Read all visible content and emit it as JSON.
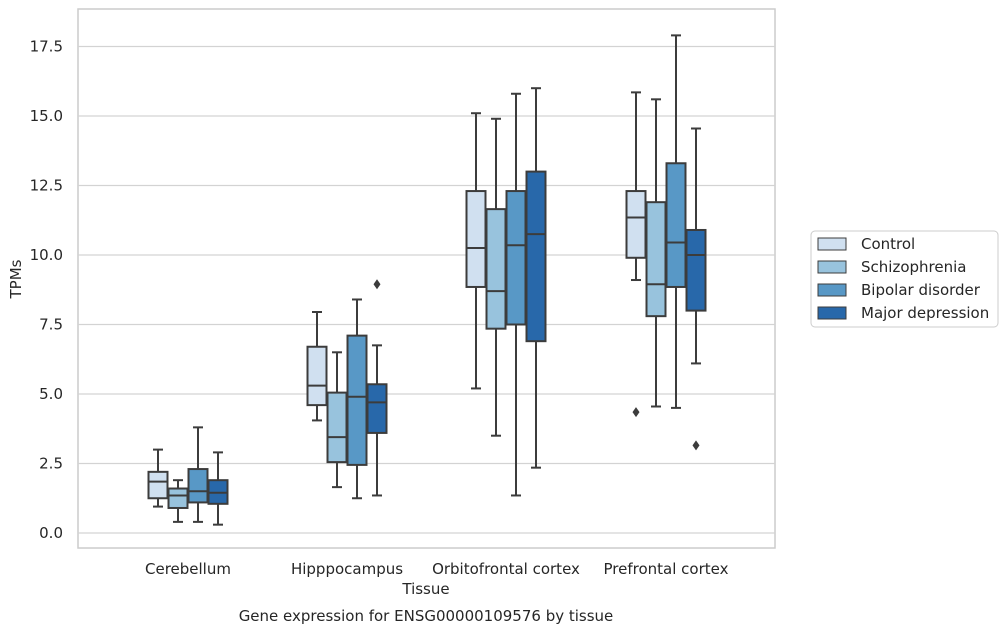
{
  "chart_data": {
    "type": "box",
    "xlabel": "Tissue",
    "ylabel": "TPMs",
    "caption": "Gene expression for ENSG00000109576 by tissue",
    "ylim": [
      -0.5,
      18.8
    ],
    "yticks": [
      "0.0",
      "2.5",
      "5.0",
      "7.5",
      "10.0",
      "12.5",
      "15.0",
      "17.5"
    ],
    "grid": "horizontal",
    "legend_position": "right",
    "categories": [
      "Cerebellum",
      "Hipppocampus",
      "Orbitofrontal cortex",
      "Prefrontal cortex"
    ],
    "series": [
      {
        "name": "Control",
        "color": "#d0e0f0",
        "boxes": [
          {
            "whislo": 0.95,
            "q1": 1.25,
            "med": 1.85,
            "q3": 2.2,
            "whishi": 3.0,
            "fliers": []
          },
          {
            "whislo": 4.05,
            "q1": 4.6,
            "med": 5.3,
            "q3": 6.7,
            "whishi": 7.95,
            "fliers": []
          },
          {
            "whislo": 5.2,
            "q1": 8.85,
            "med": 10.25,
            "q3": 12.3,
            "whishi": 15.1,
            "fliers": []
          },
          {
            "whislo": 9.1,
            "q1": 9.9,
            "med": 11.35,
            "q3": 12.3,
            "whishi": 15.85,
            "fliers": [
              4.35
            ]
          }
        ]
      },
      {
        "name": "Schizophrenia",
        "color": "#98c3dd",
        "boxes": [
          {
            "whislo": 0.4,
            "q1": 0.9,
            "med": 1.35,
            "q3": 1.6,
            "whishi": 1.9,
            "fliers": []
          },
          {
            "whislo": 1.65,
            "q1": 2.55,
            "med": 3.45,
            "q3": 5.05,
            "whishi": 6.5,
            "fliers": []
          },
          {
            "whislo": 3.5,
            "q1": 7.35,
            "med": 8.7,
            "q3": 11.65,
            "whishi": 14.9,
            "fliers": []
          },
          {
            "whislo": 4.55,
            "q1": 7.8,
            "med": 8.95,
            "q3": 11.9,
            "whishi": 15.6,
            "fliers": []
          }
        ]
      },
      {
        "name": "Bipolar disorder",
        "color": "#5898c6",
        "boxes": [
          {
            "whislo": 0.4,
            "q1": 1.1,
            "med": 1.5,
            "q3": 2.3,
            "whishi": 3.8,
            "fliers": []
          },
          {
            "whislo": 1.25,
            "q1": 2.45,
            "med": 4.9,
            "q3": 7.1,
            "whishi": 8.4,
            "fliers": []
          },
          {
            "whislo": 1.35,
            "q1": 7.5,
            "med": 10.35,
            "q3": 12.3,
            "whishi": 15.8,
            "fliers": []
          },
          {
            "whislo": 4.5,
            "q1": 8.85,
            "med": 10.45,
            "q3": 13.3,
            "whishi": 17.9,
            "fliers": []
          }
        ]
      },
      {
        "name": "Major depression",
        "color": "#2868aa",
        "boxes": [
          {
            "whislo": 0.3,
            "q1": 1.05,
            "med": 1.45,
            "q3": 1.9,
            "whishi": 2.9,
            "fliers": []
          },
          {
            "whislo": 1.35,
            "q1": 3.6,
            "med": 4.7,
            "q3": 5.35,
            "whishi": 6.75,
            "fliers": [
              8.95
            ]
          },
          {
            "whislo": 2.35,
            "q1": 6.9,
            "med": 10.75,
            "q3": 13.0,
            "whishi": 16.0,
            "fliers": []
          },
          {
            "whislo": 6.1,
            "q1": 8.0,
            "med": 10.0,
            "q3": 10.9,
            "whishi": 14.55,
            "fliers": [
              3.15
            ]
          }
        ]
      }
    ]
  }
}
